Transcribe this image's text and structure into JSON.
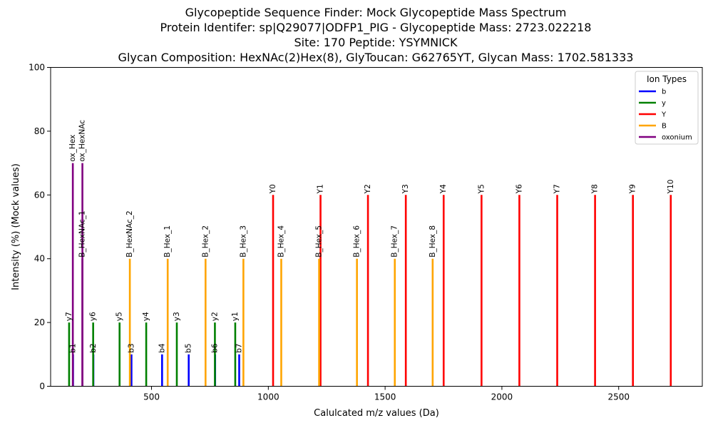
{
  "chart_data": {
    "type": "bar",
    "title": [
      "Glycopeptide Sequence Finder: Mock Glycopeptide Mass Spectrum",
      "Protein Identifer: sp|Q29077|ODFP1_PIG - Glycopeptide Mass: 2723.022218",
      "Site: 170 Peptide: YSYMNICK",
      "Glycan Composition: HexNAc(2)Hex(8), GlyToucan: G62765YT, Glycan Mass: 1702.581333"
    ],
    "xlabel": "Calulcated m/z values (Da)",
    "ylabel": "Intensity (%) (Mock values)",
    "xlim": [
      68,
      2858
    ],
    "ylim": [
      0,
      100
    ],
    "xticks": [
      500,
      1000,
      1500,
      2000,
      2500
    ],
    "yticks": [
      0,
      20,
      40,
      60,
      80,
      100
    ],
    "grid": false,
    "legend": {
      "title": "Ion Types",
      "position": "top-right",
      "entries": [
        {
          "name": "b",
          "color": "#0000ff"
        },
        {
          "name": "y",
          "color": "#008000"
        },
        {
          "name": "Y",
          "color": "#ff0000"
        },
        {
          "name": "B",
          "color": "#ffa500"
        },
        {
          "name": "oxonium",
          "color": "#800080"
        }
      ]
    },
    "series": [
      {
        "name": "b",
        "color": "#0000ff",
        "points": [
          {
            "x": 164.05,
            "y": 10,
            "label": "b1"
          },
          {
            "x": 251.08,
            "y": 10,
            "label": "b2"
          },
          {
            "x": 414.14,
            "y": 10,
            "label": "b3"
          },
          {
            "x": 545.18,
            "y": 10,
            "label": "b4"
          },
          {
            "x": 659.23,
            "y": 10,
            "label": "b5"
          },
          {
            "x": 772.31,
            "y": 10,
            "label": "b6"
          },
          {
            "x": 875.32,
            "y": 10,
            "label": "b7"
          }
        ]
      },
      {
        "name": "y",
        "color": "#008000",
        "points": [
          {
            "x": 147.11,
            "y": 20,
            "label": "y7"
          },
          {
            "x": 250.12,
            "y": 20,
            "label": "y6"
          },
          {
            "x": 363.2,
            "y": 20,
            "label": "y5"
          },
          {
            "x": 477.25,
            "y": 20,
            "label": "y4"
          },
          {
            "x": 608.29,
            "y": 20,
            "label": "y3"
          },
          {
            "x": 771.35,
            "y": 20,
            "label": "y2"
          },
          {
            "x": 858.38,
            "y": 20,
            "label": "y1"
          }
        ]
      },
      {
        "name": "Y",
        "color": "#ff0000",
        "points": [
          {
            "x": 1020.44,
            "y": 60,
            "label": "Y0"
          },
          {
            "x": 1223.52,
            "y": 60,
            "label": "Y1"
          },
          {
            "x": 1426.6,
            "y": 60,
            "label": "Y2"
          },
          {
            "x": 1588.65,
            "y": 60,
            "label": "Y3"
          },
          {
            "x": 1750.7,
            "y": 60,
            "label": "Y4"
          },
          {
            "x": 1912.76,
            "y": 60,
            "label": "Y5"
          },
          {
            "x": 2074.81,
            "y": 60,
            "label": "Y6"
          },
          {
            "x": 2236.86,
            "y": 60,
            "label": "Y7"
          },
          {
            "x": 2398.91,
            "y": 60,
            "label": "Y8"
          },
          {
            "x": 2560.97,
            "y": 60,
            "label": "Y9"
          },
          {
            "x": 2723.02,
            "y": 60,
            "label": "Y10"
          }
        ]
      },
      {
        "name": "B",
        "color": "#ffa500",
        "points": [
          {
            "x": 407.17,
            "y": 40,
            "label": "B_HexNAc_2"
          },
          {
            "x": 569.22,
            "y": 40,
            "label": "B_Hex_1"
          },
          {
            "x": 731.27,
            "y": 40,
            "label": "B_Hex_2"
          },
          {
            "x": 893.33,
            "y": 40,
            "label": "B_Hex_3"
          },
          {
            "x": 1055.38,
            "y": 40,
            "label": "B_Hex_4"
          },
          {
            "x": 1217.43,
            "y": 40,
            "label": "B_Hex_5"
          },
          {
            "x": 1379.48,
            "y": 40,
            "label": "B_Hex_6"
          },
          {
            "x": 1541.54,
            "y": 40,
            "label": "B_Hex_7"
          },
          {
            "x": 1703.59,
            "y": 40,
            "label": "B_Hex_8"
          }
        ]
      },
      {
        "name": "oxonium",
        "color": "#800080",
        "points": [
          {
            "x": 163.06,
            "y": 70,
            "label": "ox_Hex"
          },
          {
            "x": 204.09,
            "y": 70,
            "label": "ox_HexNAc"
          },
          {
            "x": 204.09,
            "y": 40,
            "label": "B_HexNAc_1"
          }
        ]
      }
    ]
  }
}
